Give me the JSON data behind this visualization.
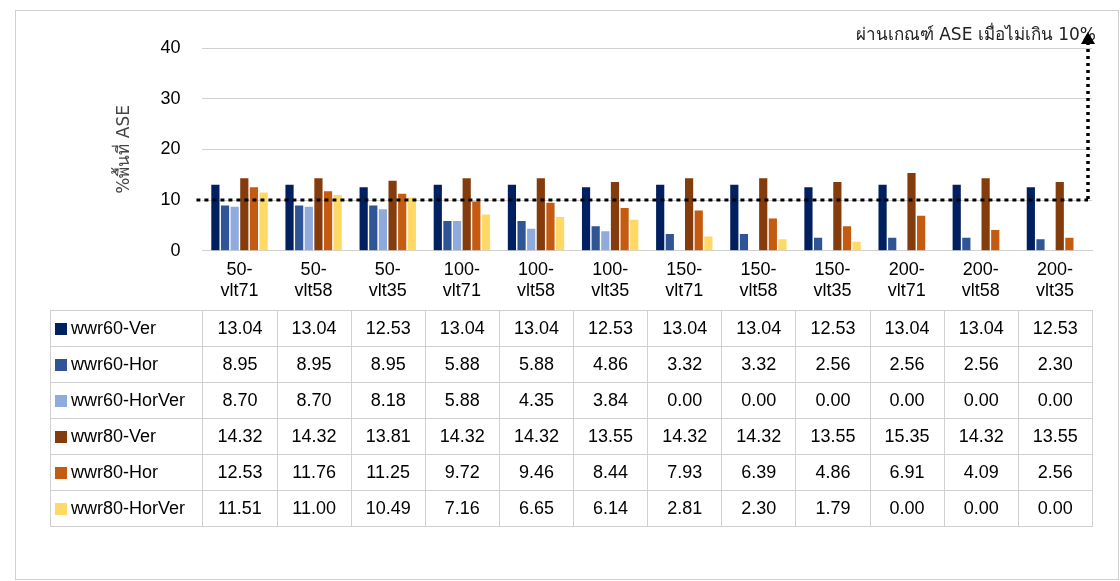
{
  "chart_data": {
    "type": "bar",
    "ylabel": "%พื้นที่ ASE",
    "categories": [
      "50-vlt71",
      "50-vlt58",
      "50-vlt35",
      "100-vlt71",
      "100-vlt58",
      "100-vlt35",
      "150-vlt71",
      "150-vlt58",
      "150-vlt35",
      "200-vlt71",
      "200-vlt58",
      "200-vlt35"
    ],
    "series": [
      {
        "name": "wwr60-Ver",
        "color": "#002060",
        "values": [
          13.04,
          13.04,
          12.53,
          13.04,
          13.04,
          12.53,
          13.04,
          13.04,
          12.53,
          13.04,
          13.04,
          12.53
        ],
        "value_labels": [
          "13.04",
          "13.04",
          "12.53",
          "13.04",
          "13.04",
          "12.53",
          "13.04",
          "13.04",
          "12.53",
          "13.04",
          "13.04",
          "12.53"
        ]
      },
      {
        "name": "wwr60-Hor",
        "color": "#2f5597",
        "values": [
          8.95,
          8.95,
          8.95,
          5.88,
          5.88,
          4.86,
          3.32,
          3.32,
          2.56,
          2.56,
          2.56,
          2.3
        ],
        "value_labels": [
          "8.95",
          "8.95",
          "8.95",
          "5.88",
          "5.88",
          "4.86",
          "3.32",
          "3.32",
          "2.56",
          "2.56",
          "2.56",
          "2.30"
        ]
      },
      {
        "name": "wwr60-HorVer",
        "color": "#8faadc",
        "values": [
          8.7,
          8.7,
          8.18,
          5.88,
          4.35,
          3.84,
          0,
          0,
          0,
          0,
          0,
          0
        ],
        "value_labels": [
          "8.70",
          "8.70",
          "8.18",
          "5.88",
          "4.35",
          "3.84",
          "0.00",
          "0.00",
          "0.00",
          "0.00",
          "0.00",
          "0.00"
        ]
      },
      {
        "name": "wwr80-Ver",
        "color": "#843c0c",
        "values": [
          14.32,
          14.32,
          13.81,
          14.32,
          14.32,
          13.55,
          14.32,
          14.32,
          13.55,
          15.35,
          14.32,
          13.55
        ],
        "value_labels": [
          "14.32",
          "14.32",
          "13.81",
          "14.32",
          "14.32",
          "13.55",
          "14.32",
          "14.32",
          "13.55",
          "15.35",
          "14.32",
          "13.55"
        ]
      },
      {
        "name": "wwr80-Hor",
        "color": "#c55a11",
        "values": [
          12.53,
          11.76,
          11.25,
          9.72,
          9.46,
          8.44,
          7.93,
          6.39,
          4.86,
          6.91,
          4.09,
          2.56
        ],
        "value_labels": [
          "12.53",
          "11.76",
          "11.25",
          "9.72",
          "9.46",
          "8.44",
          "7.93",
          "6.39",
          "4.86",
          "6.91",
          "4.09",
          "2.56"
        ]
      },
      {
        "name": "wwr80-HorVer",
        "color": "#ffd966",
        "values": [
          11.51,
          11.0,
          10.49,
          7.16,
          6.65,
          6.14,
          2.81,
          2.3,
          1.79,
          0,
          0,
          0
        ],
        "value_labels": [
          "11.51",
          "11.00",
          "10.49",
          "7.16",
          "6.65",
          "6.14",
          "2.81",
          "2.30",
          "1.79",
          "0.00",
          "0.00",
          "0.00"
        ]
      }
    ],
    "ylim": [
      0,
      40
    ],
    "yticks": [
      0,
      10,
      20,
      30,
      40
    ],
    "grid": "y",
    "legend": "bottom",
    "ref_lines": [
      {
        "axis": "y",
        "value": 10,
        "label": "ผ่านเกณฑ์ ASE เมื่อไม่เกิน 10%",
        "color": "#000000",
        "line_style": "dotted"
      }
    ]
  }
}
